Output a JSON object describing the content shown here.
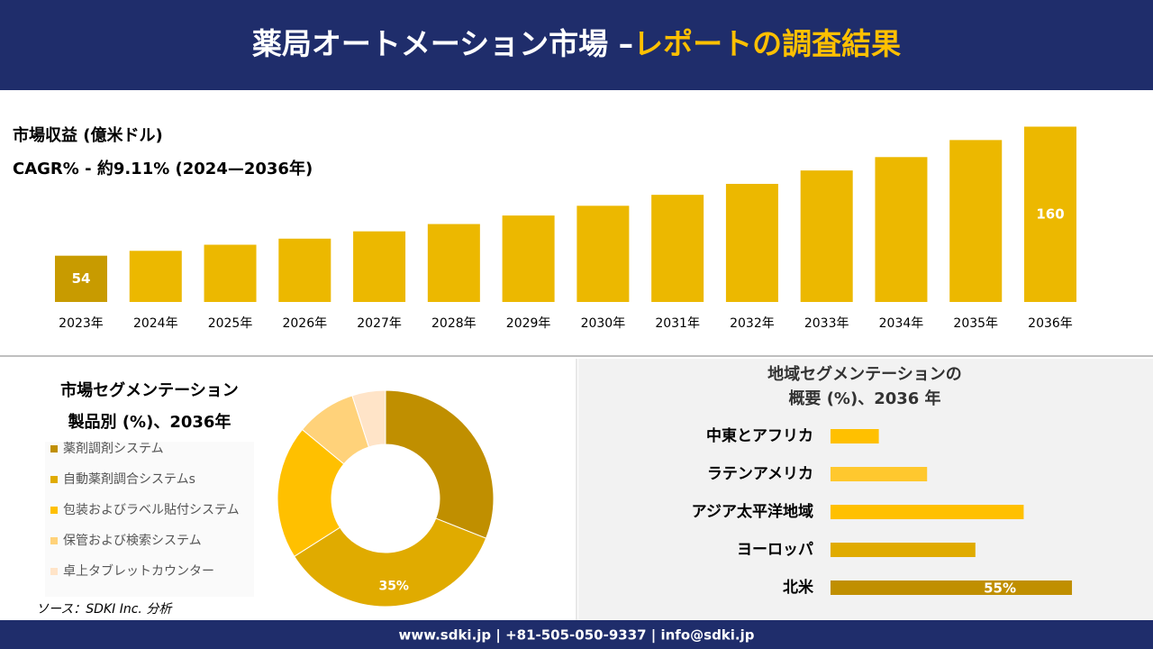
{
  "header": {
    "title": "薬局オートメーション市場 –",
    "title_highlight": "レポートの調査結果"
  },
  "chart_data": [
    {
      "type": "bar",
      "title": "市場収益 (億米ドル)",
      "subtitle": "CAGR% - 約9.11% (2024—2036年)",
      "categories": [
        "2023年",
        "2024年",
        "2025年",
        "2026年",
        "2027年",
        "2028年",
        "2029年",
        "2030年",
        "2031年",
        "2032年",
        "2033年",
        "2034年",
        "2035年",
        "2036年"
      ],
      "values": [
        54,
        58,
        63,
        68,
        74,
        80,
        87,
        95,
        104,
        113,
        124,
        135,
        149,
        160
      ],
      "value_labels": [
        "54",
        null,
        null,
        null,
        null,
        null,
        null,
        null,
        null,
        null,
        null,
        null,
        null,
        "160"
      ],
      "color": "#ecb800",
      "ylim": [
        16,
        170
      ]
    },
    {
      "type": "donut",
      "title": [
        "市場セグメンテーション",
        "製品別 (%)、2036年"
      ],
      "categories": [
        "薬剤調剤システム",
        "自動薬剤調合システムs",
        "包装およびラベル貼付システム",
        "保管および検索システム",
        "卓上タブレットカウンター"
      ],
      "values": [
        31,
        35,
        20,
        9,
        5
      ],
      "value_labels": [
        null,
        "35%",
        null,
        null,
        null
      ],
      "colors": [
        "#c08f00",
        "#e0ab00",
        "#ffc000",
        "#ffd27a",
        "#ffe4c8"
      ]
    },
    {
      "type": "hbar",
      "title": [
        "地域セグメンテーションの",
        "概要 (%)、2036 年"
      ],
      "categories": [
        "中東とアフリカ",
        "ラテンアメリカ",
        "アジア太平洋地域",
        "ヨーロッパ",
        "北米"
      ],
      "values": [
        11,
        22,
        44,
        33,
        55
      ],
      "value_labels": [
        null,
        null,
        null,
        null,
        "55%"
      ],
      "colors": [
        "#ffc000",
        "#ffc82e",
        "#ffc000",
        "#e0ab00",
        "#c08f00"
      ],
      "xlim": [
        0,
        60
      ]
    }
  ],
  "source": "ソース：SDKI Inc. 分析",
  "footer": "www.sdki.jp | +81-505-050-9337 | info@sdki.jp"
}
